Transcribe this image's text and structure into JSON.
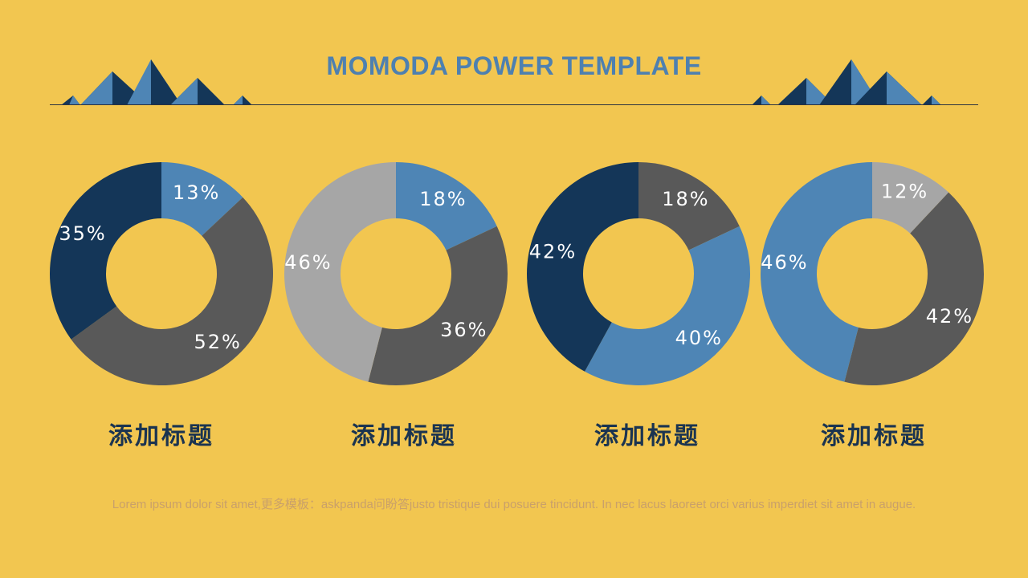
{
  "header": {
    "title": "MOMODA POWER TEMPLATE"
  },
  "colors": {
    "background": "#F2C650",
    "navy": "#143658",
    "steel_blue": "#4E85B5",
    "dark_gray": "#595959",
    "light_gray": "#A6A6A6",
    "title_blue": "#4E80B0",
    "heading_text": "#1B3450",
    "footer_text": "#C9A06A"
  },
  "chart_data": [
    {
      "type": "pie",
      "title": "添加标题",
      "slices": [
        {
          "label": "13%",
          "value": 13,
          "color": "#4E85B5"
        },
        {
          "label": "52%",
          "value": 52,
          "color": "#595959"
        },
        {
          "label": "35%",
          "value": 35,
          "color": "#143658"
        }
      ]
    },
    {
      "type": "pie",
      "title": "添加标题",
      "slices": [
        {
          "label": "18%",
          "value": 18,
          "color": "#4E85B5"
        },
        {
          "label": "36%",
          "value": 36,
          "color": "#595959"
        },
        {
          "label": "46%",
          "value": 46,
          "color": "#A6A6A6"
        }
      ]
    },
    {
      "type": "pie",
      "title": "添加标题",
      "slices": [
        {
          "label": "18%",
          "value": 18,
          "color": "#595959"
        },
        {
          "label": "40%",
          "value": 40,
          "color": "#4E85B5"
        },
        {
          "label": "42%",
          "value": 42,
          "color": "#143658"
        }
      ]
    },
    {
      "type": "pie",
      "title": "添加标题",
      "slices": [
        {
          "label": "12%",
          "value": 12,
          "color": "#A6A6A6"
        },
        {
          "label": "42%",
          "value": 42,
          "color": "#595959"
        },
        {
          "label": "46%",
          "value": 46,
          "color": "#4E85B5"
        }
      ]
    }
  ],
  "footer": {
    "text": "Lorem ipsum dolor sit amet,更多模板：askpanda问盼答justo tristique dui posuere tincidunt. In nec lacus laoreet orci varius imperdiet sit amet in augue."
  }
}
